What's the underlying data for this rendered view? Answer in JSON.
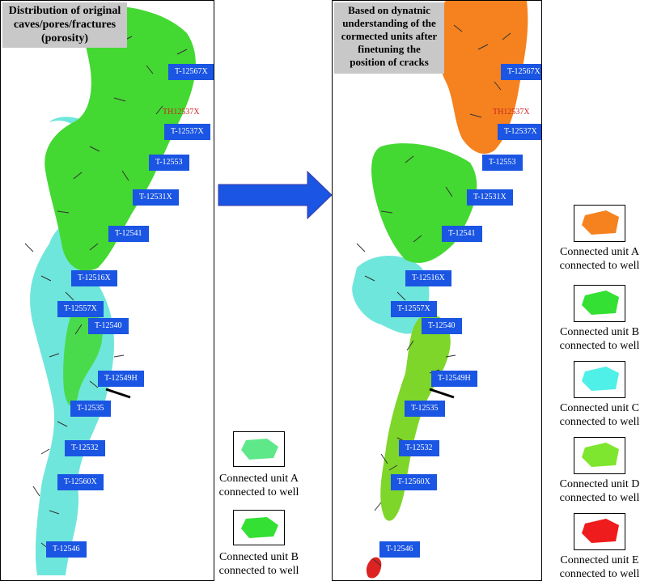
{
  "left_panel": {
    "title_lines": [
      "Distribution of original",
      "caves/pores/fractures",
      "(porosity)"
    ],
    "wells": [
      "T-12567X",
      "T-12537X",
      "T-12553",
      "T-12531X",
      "T-12541",
      "T-12516X",
      "T-12557X",
      "T-12540",
      "T-12549H",
      "T-12535",
      "T-12532",
      "T-12560X",
      "T-12546"
    ],
    "well_name_red": "TH12537X"
  },
  "right_panel": {
    "title_lines": [
      "Based on dynatnic",
      "understanding of the",
      "cormected units after",
      "finetuning the",
      "position of cracks"
    ],
    "wells": [
      "T-12567X",
      "T-12537X",
      "T-12553",
      "T-12531X",
      "T-12541",
      "T-12516X",
      "T-12557X",
      "T-12540",
      "T-12549H",
      "T-12535",
      "T-12532",
      "T-12560X",
      "T-12546"
    ],
    "well_name_red": "TH12537X"
  },
  "legend_middle": [
    {
      "line1": "Connected unit A",
      "line2": "connected to well",
      "color": "#5ee88a"
    },
    {
      "line1": "Connected unit B",
      "line2": "connected to well",
      "color": "#33e033"
    }
  ],
  "legend_right": [
    {
      "line1": "Connected unit A",
      "line2": "connected to well",
      "color": "#f5821f"
    },
    {
      "line1": "Connected unit B",
      "line2": "connected to well",
      "color": "#33e033"
    },
    {
      "line1": "Connected unit C",
      "line2": "connected to well",
      "color": "#4ff0e8"
    },
    {
      "line1": "Connected unit D",
      "line2": "connected to well",
      "color": "#7ee62e"
    },
    {
      "line1": "Connected unit E",
      "line2": "connected to well",
      "color": "#ee1c1c"
    }
  ],
  "colors": {
    "well_label": "#1a55e3",
    "arrow": "#1a55e3",
    "green": "#44d832",
    "cyan": "#6fe6dc",
    "orange": "#f5821f",
    "lime": "#7ed62a",
    "red": "#dd2222"
  }
}
